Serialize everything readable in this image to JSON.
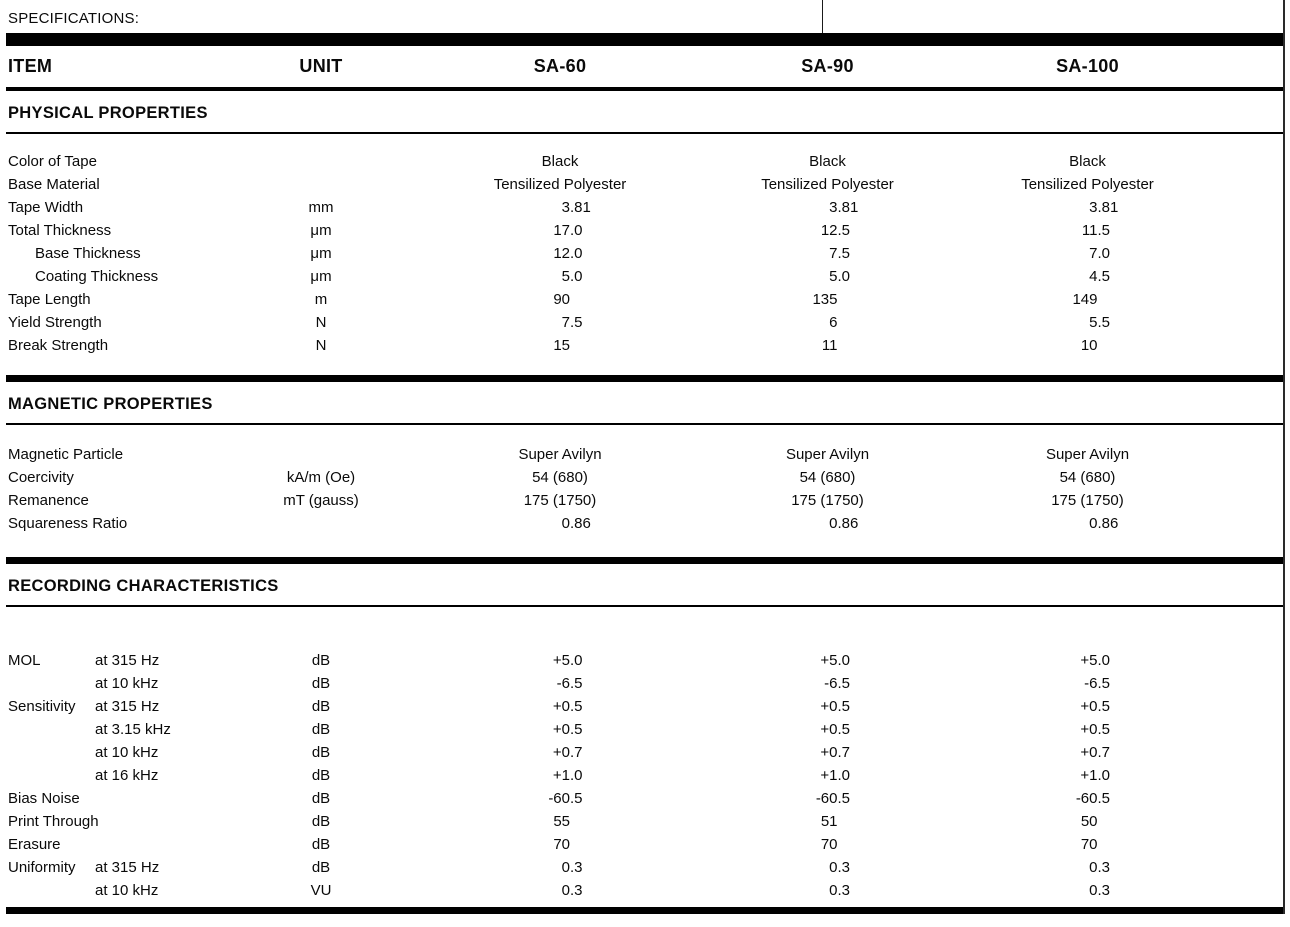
{
  "page": {
    "title": "SPECIFICATIONS:"
  },
  "table": {
    "columns": [
      "ITEM",
      "UNIT",
      "SA-60",
      "SA-90",
      "SA-100"
    ],
    "sections": [
      {
        "title": "PHYSICAL PROPERTIES",
        "rows": [
          {
            "label": "Color of Tape",
            "sub": "",
            "unit": "",
            "indent": false,
            "values": [
              "Black",
              "Black",
              "Black"
            ]
          },
          {
            "label": "Base Material",
            "sub": "",
            "unit": "",
            "indent": false,
            "values": [
              "Tensilized Polyester",
              "Tensilized Polyester",
              "Tensilized Polyester"
            ]
          },
          {
            "label": "Tape Width",
            "sub": "",
            "unit": "mm",
            "indent": false,
            "values": [
              "3.81",
              "3.81",
              "3.81"
            ]
          },
          {
            "label": "Total Thickness",
            "sub": "",
            "unit": "μm",
            "indent": false,
            "values": [
              "17.0",
              "12.5",
              "11.5"
            ]
          },
          {
            "label": "Base Thickness",
            "sub": "",
            "unit": "μm",
            "indent": true,
            "values": [
              "12.0",
              "7.5",
              "7.0"
            ]
          },
          {
            "label": "Coating Thickness",
            "sub": "",
            "unit": "μm",
            "indent": true,
            "values": [
              "5.0",
              "5.0",
              "4.5"
            ]
          },
          {
            "label": "Tape Length",
            "sub": "",
            "unit": "m",
            "indent": false,
            "values": [
              "90",
              "135",
              "149"
            ]
          },
          {
            "label": "Yield Strength",
            "sub": "",
            "unit": "N",
            "indent": false,
            "values": [
              "7.5",
              "6",
              "5.5"
            ]
          },
          {
            "label": "Break Strength",
            "sub": "",
            "unit": "N",
            "indent": false,
            "values": [
              "15",
              "11",
              "10"
            ]
          }
        ]
      },
      {
        "title": "MAGNETIC PROPERTIES",
        "rows": [
          {
            "label": "Magnetic Particle",
            "sub": "",
            "unit": "",
            "indent": false,
            "values": [
              "Super Avilyn",
              "Super Avilyn",
              "Super Avilyn"
            ]
          },
          {
            "label": "Coercivity",
            "sub": "",
            "unit": "kA/m (Oe)",
            "indent": false,
            "values": [
              "54 (680)",
              "54 (680)",
              "54 (680)"
            ]
          },
          {
            "label": "Remanence",
            "sub": "",
            "unit": "mT (gauss)",
            "indent": false,
            "values": [
              "175 (1750)",
              "175 (1750)",
              "175 (1750)"
            ]
          },
          {
            "label": "Squareness Ratio",
            "sub": "",
            "unit": "",
            "indent": false,
            "values": [
              "0.86",
              "0.86",
              "0.86"
            ]
          }
        ]
      },
      {
        "title": "RECORDING CHARACTERISTICS",
        "rows": [
          {
            "label": "MOL",
            "sub": "at 315 Hz",
            "unit": "dB",
            "indent": false,
            "values": [
              "+5.0",
              "+5.0",
              "+5.0"
            ]
          },
          {
            "label": "",
            "sub": "at 10 kHz",
            "unit": "dB",
            "indent": false,
            "values": [
              "-6.5",
              "-6.5",
              "-6.5"
            ]
          },
          {
            "label": "Sensitivity",
            "sub": "at 315 Hz",
            "unit": "dB",
            "indent": false,
            "values": [
              "+0.5",
              "+0.5",
              "+0.5"
            ]
          },
          {
            "label": "",
            "sub": "at 3.15 kHz",
            "unit": "dB",
            "indent": false,
            "values": [
              "+0.5",
              "+0.5",
              "+0.5"
            ]
          },
          {
            "label": "",
            "sub": "at 10 kHz",
            "unit": "dB",
            "indent": false,
            "values": [
              "+0.7",
              "+0.7",
              "+0.7"
            ]
          },
          {
            "label": "",
            "sub": "at 16 kHz",
            "unit": "dB",
            "indent": false,
            "values": [
              "+1.0",
              "+1.0",
              "+1.0"
            ]
          },
          {
            "label": "Bias Noise",
            "sub": "",
            "unit": "dB",
            "indent": false,
            "values": [
              "-60.5",
              "-60.5",
              "-60.5"
            ]
          },
          {
            "label": "Print Through",
            "sub": "",
            "unit": "dB",
            "indent": false,
            "values": [
              "55",
              "51",
              "50"
            ]
          },
          {
            "label": "Erasure",
            "sub": "",
            "unit": "dB",
            "indent": false,
            "values": [
              "70",
              "70",
              "70"
            ]
          },
          {
            "label": "Uniformity",
            "sub": "at 315 Hz",
            "unit": "dB",
            "indent": false,
            "values": [
              "0.3",
              "0.3",
              "0.3"
            ]
          },
          {
            "label": "",
            "sub": "at 10 kHz",
            "unit": "VU",
            "indent": false,
            "values": [
              "0.3",
              "0.3",
              "0.3"
            ]
          }
        ]
      }
    ]
  }
}
